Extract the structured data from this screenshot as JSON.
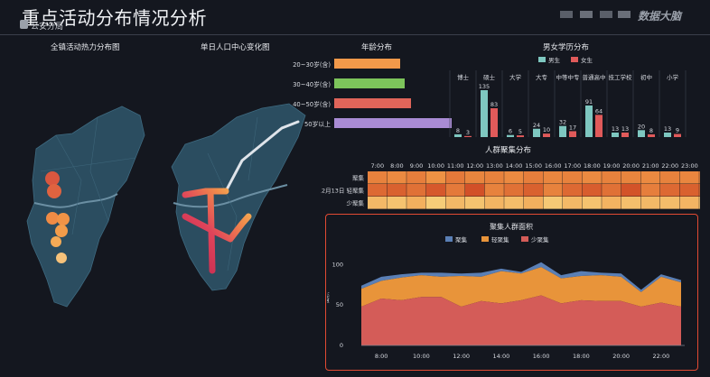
{
  "header": {
    "title": "重点活动分布情况分析",
    "subtitle": "公安分局",
    "brand": "数据大脑"
  },
  "panels": {
    "heatmap_title": "全镇活动热力分布图",
    "center_title": "单日人口中心变化图",
    "age_title": "年龄分布",
    "edu_title": "男女学历分布",
    "crowd_title": "人群聚集分布",
    "area_title": "聚集人群面积"
  },
  "colors": {
    "orange": "#f2994a",
    "green": "#7dc45b",
    "red": "#e0655a",
    "purple": "#a98bd4",
    "teal": "#7ec7c0",
    "female": "#e05a5a",
    "area_blue": "#5a7fb5",
    "area_orange": "#e8943a",
    "area_red": "#d45c58",
    "highlight": "#e24a33"
  },
  "chart_data": [
    {
      "type": "bar",
      "id": "age",
      "categories": [
        "20~30岁(含)",
        "30~40岁(含)",
        "40~50岁(含)",
        "50岁以上"
      ],
      "values": [
        45,
        48,
        52,
        80
      ],
      "colors": [
        "#f2994a",
        "#7dc45b",
        "#e0655a",
        "#a98bd4"
      ]
    },
    {
      "type": "bar",
      "id": "education",
      "categories": [
        "博士",
        "硕士",
        "大学",
        "大专",
        "中等中专",
        "普通高中",
        "技工学校",
        "初中",
        "小学"
      ],
      "series": [
        {
          "name": "男生",
          "values": [
            8,
            135,
            6,
            24,
            32,
            91,
            13,
            20,
            13
          ]
        },
        {
          "name": "女生",
          "values": [
            3,
            83,
            5,
            10,
            17,
            64,
            13,
            8,
            9
          ]
        }
      ],
      "ylim": [
        0,
        140
      ]
    },
    {
      "type": "heatmap",
      "id": "crowd",
      "x": [
        "7:00",
        "8:00",
        "9:00",
        "10:00",
        "11:00",
        "12:00",
        "13:00",
        "14:00",
        "15:00",
        "16:00",
        "17:00",
        "18:00",
        "19:00",
        "20:00",
        "21:00",
        "22:00",
        "23:00",
        "00:00"
      ],
      "y": [
        "聚集",
        "12月13日 轻聚集",
        "少聚集"
      ],
      "values": [
        [
          0.6,
          0.55,
          0.62,
          0.5,
          0.65,
          0.58,
          0.6,
          0.55,
          0.62,
          0.57,
          0.6,
          0.55,
          0.6,
          0.58,
          0.55,
          0.6,
          0.57,
          0.58
        ],
        [
          0.75,
          0.8,
          0.7,
          0.85,
          0.65,
          0.9,
          0.6,
          0.7,
          0.8,
          0.6,
          0.75,
          0.82,
          0.7,
          0.88,
          0.62,
          0.75,
          0.8,
          0.7
        ],
        [
          0.3,
          0.25,
          0.35,
          0.2,
          0.3,
          0.25,
          0.32,
          0.28,
          0.35,
          0.22,
          0.3,
          0.25,
          0.33,
          0.27,
          0.3,
          0.28,
          0.32,
          0.25
        ]
      ]
    },
    {
      "type": "area",
      "id": "area",
      "title": "聚集人群面积",
      "ylabel": "面积",
      "x": [
        "7:00",
        "8:00",
        "9:00",
        "10:00",
        "11:00",
        "12:00",
        "13:00",
        "14:00",
        "15:00",
        "16:00",
        "17:00",
        "18:00",
        "19:00",
        "20:00",
        "21:00",
        "22:00",
        "23:00"
      ],
      "xticks": [
        "8:00",
        "10:00",
        "12:00",
        "14:00",
        "16:00",
        "18:00",
        "20:00",
        "22:00"
      ],
      "yticks": [
        0,
        50,
        100
      ],
      "ylim": [
        0,
        115
      ],
      "series": [
        {
          "name": "聚集",
          "values": [
            4,
            5,
            4,
            3,
            5,
            3,
            5,
            3,
            2,
            6,
            4,
            6,
            3,
            4,
            3,
            3,
            3
          ]
        },
        {
          "name": "轻聚集",
          "values": [
            22,
            22,
            28,
            27,
            25,
            38,
            30,
            40,
            33,
            35,
            31,
            30,
            32,
            30,
            18,
            32,
            30
          ]
        },
        {
          "name": "少聚集",
          "values": [
            48,
            58,
            56,
            60,
            60,
            48,
            55,
            52,
            56,
            62,
            52,
            56,
            55,
            55,
            48,
            53,
            48
          ]
        }
      ],
      "legend_position": "top"
    }
  ]
}
